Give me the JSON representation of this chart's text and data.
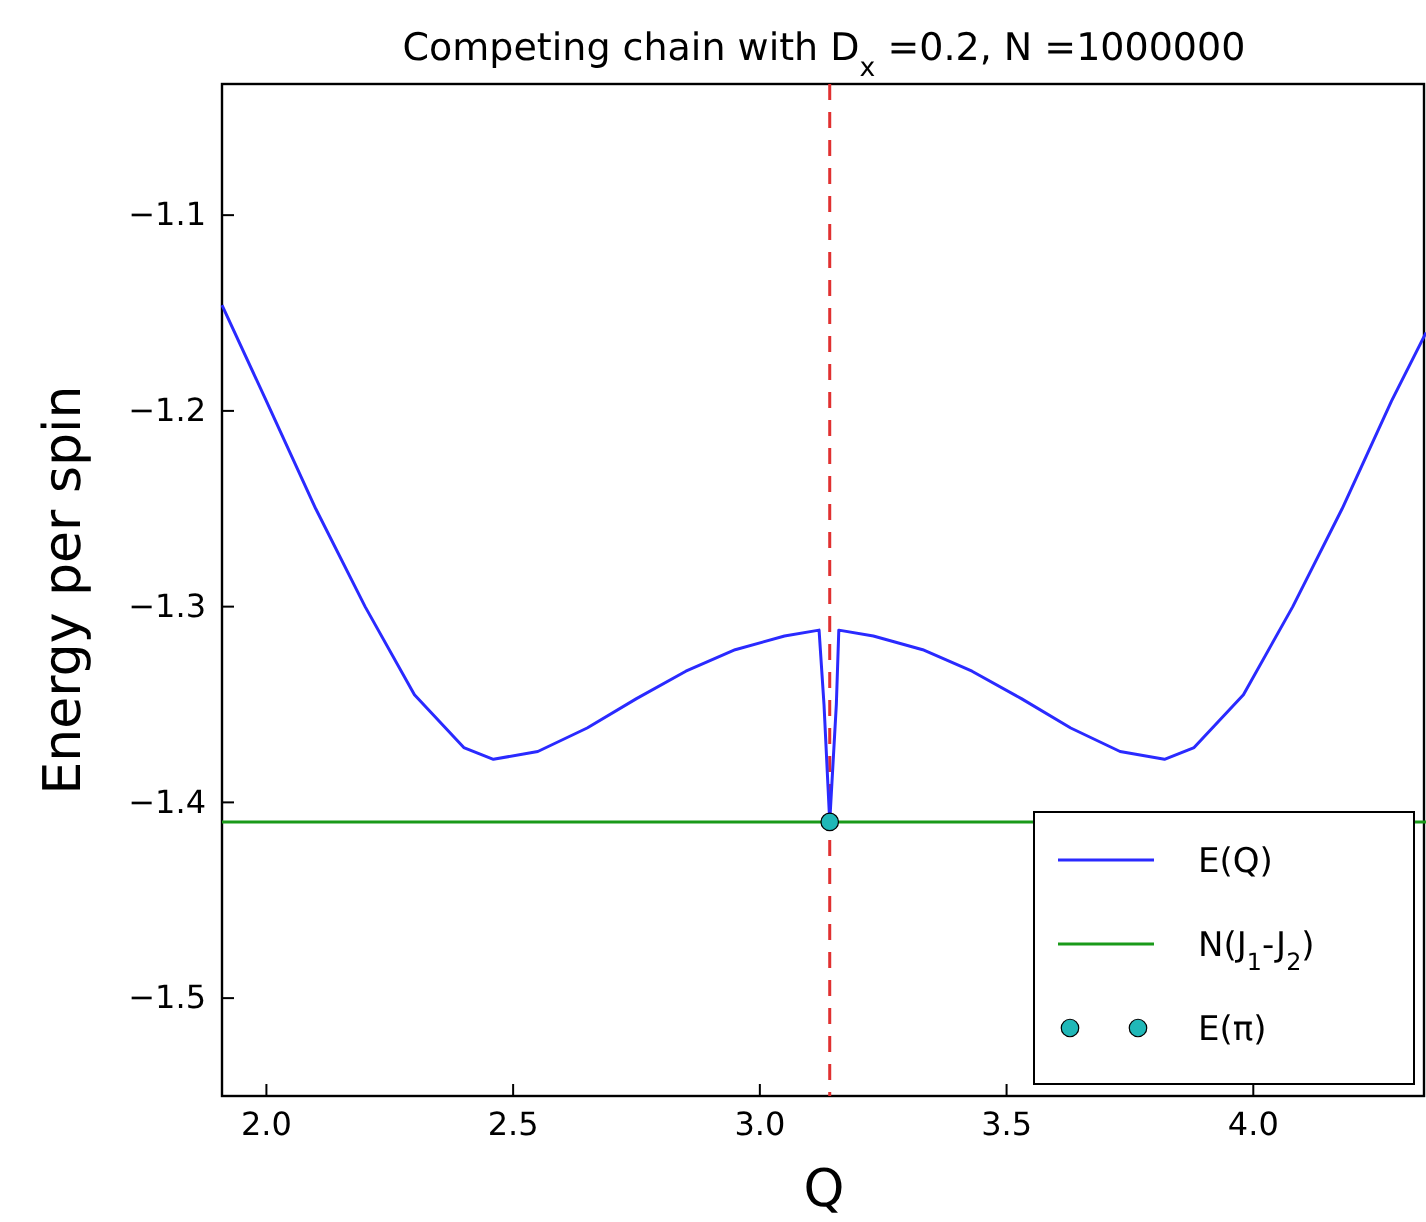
{
  "chart_data": {
    "type": "line",
    "title": "Competing chain with D$_{x}$ =0.2, N =1000000",
    "xlabel": "Q",
    "ylabel": "Energy per spin",
    "xlim": [
      1.91,
      4.35
    ],
    "xticks": [
      {
        "value": 2.0,
        "label": "2.0"
      },
      {
        "value": 2.5,
        "label": "2.5"
      },
      {
        "value": 3.0,
        "label": "3.0"
      },
      {
        "value": 3.5,
        "label": "3.5"
      },
      {
        "value": 4.0,
        "label": "4.0"
      }
    ],
    "ylim": [
      -1.55,
      -1.033
    ],
    "yticks": [
      {
        "value": -1.5,
        "label": "−1.5"
      },
      {
        "value": -1.4,
        "label": "−1.4"
      },
      {
        "value": -1.3,
        "label": "−1.3"
      },
      {
        "value": -1.2,
        "label": "−1.2"
      },
      {
        "value": -1.1,
        "label": "−1.1"
      }
    ],
    "grid": false,
    "legend": "bottom right",
    "ref_lines": [
      {
        "axis": "x",
        "value": 3.1416,
        "color": "#e03030",
        "line_style": "dashed"
      }
    ],
    "series": [
      {
        "name": "E(Q)",
        "color": "#2a2aff",
        "x": [
          1.91,
          2.0,
          2.1,
          2.2,
          2.3,
          2.4,
          2.46,
          2.55,
          2.65,
          2.75,
          2.85,
          2.95,
          3.05,
          3.12,
          3.13,
          3.1416,
          3.155,
          3.16,
          3.23,
          3.33,
          3.43,
          3.53,
          3.63,
          3.73,
          3.82,
          3.88,
          3.98,
          4.08,
          4.18,
          4.28,
          4.35
        ],
        "values": [
          -1.146,
          -1.195,
          -1.25,
          -1.3,
          -1.345,
          -1.372,
          -1.378,
          -1.374,
          -1.362,
          -1.347,
          -1.333,
          -1.322,
          -1.315,
          -1.312,
          -1.35,
          -1.41,
          -1.35,
          -1.312,
          -1.315,
          -1.322,
          -1.333,
          -1.347,
          -1.362,
          -1.374,
          -1.378,
          -1.372,
          -1.345,
          -1.3,
          -1.25,
          -1.195,
          -1.16
        ]
      },
      {
        "name": "N(J$_{1}$-J$_{2}$)",
        "color": "#1a9a1a",
        "x": [
          1.91,
          4.35
        ],
        "values": [
          -1.41,
          -1.41
        ]
      },
      {
        "name": "E(π)",
        "type": "scatter",
        "marker": "circle",
        "color": "#20b8b8",
        "x": [
          3.1416
        ],
        "values": [
          -1.41
        ]
      }
    ]
  }
}
